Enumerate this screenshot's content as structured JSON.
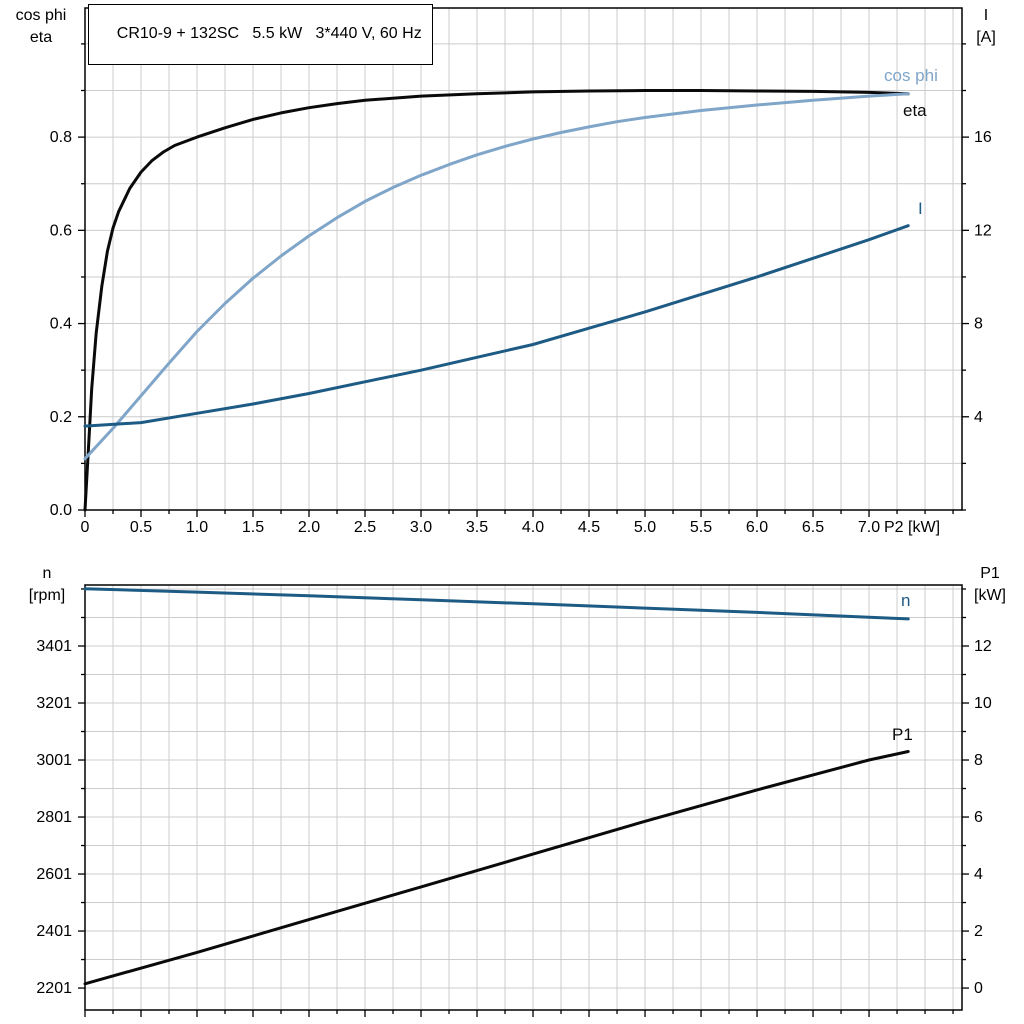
{
  "title_box": {
    "text": "CR10-9 + 132SC   5.5 kW   3*440 V, 60 Hz"
  },
  "colors": {
    "black_curve": "#0a0a0a",
    "cos_phi_curve": "#7fa5c9",
    "blue_curve": "#1d5b85",
    "grid": "#cccccc",
    "axis": "#000000",
    "background": "#ffffff"
  },
  "chart_data": [
    {
      "type": "line",
      "name": "efficiency-current-chart",
      "title": "CR10-9 + 132SC 5.5 kW 3*440 V, 60 Hz",
      "grid": true,
      "x_axis": {
        "label": "P2 [kW]",
        "min": 0,
        "max": 7.83,
        "minor_step": 0.25,
        "major_ticks": [
          0,
          0.5,
          1,
          1.5,
          2,
          2.5,
          3,
          3.5,
          4,
          4.5,
          5,
          5.5,
          6,
          6.5,
          7
        ],
        "tick_labels": [
          "0",
          "0.5",
          "1.0",
          "1.5",
          "2.0",
          "2.5",
          "3.0",
          "3.5",
          "4.0",
          "4.5",
          "5.0",
          "5.5",
          "6.0",
          "6.5",
          "7.0"
        ]
      },
      "left_axis": {
        "title_lines": [
          "cos phi",
          "eta"
        ],
        "min": 0,
        "max": 1.077,
        "minor_step": 0.1,
        "major_ticks": [
          0,
          0.2,
          0.4,
          0.6,
          0.8
        ],
        "tick_labels": [
          "0.0",
          "0.2",
          "0.4",
          "0.6",
          "0.8"
        ]
      },
      "right_axis": {
        "title_lines": [
          "I",
          "[A]"
        ],
        "min": 0,
        "max": 21.54,
        "minor_step": 2,
        "major_ticks": [
          4,
          8,
          12,
          16
        ],
        "tick_labels": [
          "4",
          "8",
          "12",
          "16"
        ]
      },
      "series": [
        {
          "name": "eta",
          "label": "eta",
          "axis": "left",
          "color": "#0a0a0a",
          "points": [
            [
              0,
              0
            ],
            [
              0.03,
              0.13
            ],
            [
              0.06,
              0.26
            ],
            [
              0.1,
              0.38
            ],
            [
              0.15,
              0.48
            ],
            [
              0.2,
              0.555
            ],
            [
              0.25,
              0.605
            ],
            [
              0.3,
              0.64
            ],
            [
              0.4,
              0.69
            ],
            [
              0.5,
              0.725
            ],
            [
              0.6,
              0.75
            ],
            [
              0.7,
              0.768
            ],
            [
              0.8,
              0.782
            ],
            [
              1,
              0.8
            ],
            [
              1.25,
              0.82
            ],
            [
              1.5,
              0.838
            ],
            [
              1.75,
              0.852
            ],
            [
              2,
              0.863
            ],
            [
              2.25,
              0.872
            ],
            [
              2.5,
              0.879
            ],
            [
              3,
              0.888
            ],
            [
              3.5,
              0.893
            ],
            [
              4,
              0.897
            ],
            [
              4.5,
              0.899
            ],
            [
              5,
              0.9
            ],
            [
              5.5,
              0.9
            ],
            [
              6,
              0.899
            ],
            [
              6.5,
              0.898
            ],
            [
              7,
              0.896
            ],
            [
              7.35,
              0.893
            ]
          ]
        },
        {
          "name": "cos phi",
          "label": "cos phi",
          "axis": "left",
          "color": "#7fa5c9",
          "points": [
            [
              0,
              0.11
            ],
            [
              0.25,
              0.175
            ],
            [
              0.5,
              0.245
            ],
            [
              0.75,
              0.315
            ],
            [
              1,
              0.383
            ],
            [
              1.25,
              0.443
            ],
            [
              1.5,
              0.497
            ],
            [
              1.75,
              0.545
            ],
            [
              2,
              0.588
            ],
            [
              2.25,
              0.627
            ],
            [
              2.5,
              0.662
            ],
            [
              2.75,
              0.692
            ],
            [
              3,
              0.718
            ],
            [
              3.25,
              0.741
            ],
            [
              3.5,
              0.762
            ],
            [
              3.75,
              0.78
            ],
            [
              4,
              0.796
            ],
            [
              4.25,
              0.81
            ],
            [
              4.5,
              0.822
            ],
            [
              4.75,
              0.833
            ],
            [
              5,
              0.842
            ],
            [
              5.5,
              0.857
            ],
            [
              6,
              0.869
            ],
            [
              6.5,
              0.879
            ],
            [
              7,
              0.888
            ],
            [
              7.35,
              0.893
            ]
          ]
        },
        {
          "name": "I",
          "label": "I",
          "axis": "right",
          "color": "#1d5b85",
          "points": [
            [
              0,
              3.6
            ],
            [
              0.5,
              3.75
            ],
            [
              1,
              4.15
            ],
            [
              1.5,
              4.55
            ],
            [
              2,
              5
            ],
            [
              2.5,
              5.5
            ],
            [
              3,
              6
            ],
            [
              3.5,
              6.55
            ],
            [
              4,
              7.1
            ],
            [
              4.5,
              7.8
            ],
            [
              5,
              8.5
            ],
            [
              5.5,
              9.25
            ],
            [
              6,
              10
            ],
            [
              6.5,
              10.8
            ],
            [
              7,
              11.6
            ],
            [
              7.35,
              12.2
            ]
          ]
        }
      ]
    },
    {
      "type": "line",
      "name": "speed-power-chart",
      "grid": true,
      "x_axis": {
        "label": "",
        "min": 0,
        "max": 7.83,
        "minor_step": 0.25,
        "major_ticks": [
          0,
          0.5,
          1,
          1.5,
          2,
          2.5,
          3,
          3.5,
          4,
          4.5,
          5,
          5.5,
          6,
          6.5,
          7
        ],
        "tick_labels": []
      },
      "left_axis": {
        "title_lines": [
          "n",
          "[rpm]"
        ],
        "min": 2124,
        "max": 3615,
        "minor_step": 100,
        "major_ticks": [
          2201,
          2401,
          2601,
          2801,
          3001,
          3201,
          3401
        ],
        "tick_labels": [
          "2201",
          "2401",
          "2601",
          "2801",
          "3001",
          "3201",
          "3401"
        ]
      },
      "right_axis": {
        "title_lines": [
          "P1",
          "[kW]"
        ],
        "min": -0.77,
        "max": 14.14,
        "minor_step": 1,
        "major_ticks": [
          0,
          2,
          4,
          6,
          8,
          10,
          12
        ],
        "tick_labels": [
          "0",
          "2",
          "4",
          "6",
          "8",
          "10",
          "12"
        ]
      },
      "series": [
        {
          "name": "n",
          "label": "n",
          "axis": "left",
          "color": "#1d5b85",
          "points": [
            [
              0,
              3602
            ],
            [
              1,
              3590
            ],
            [
              2,
              3577
            ],
            [
              3,
              3563
            ],
            [
              4,
              3549
            ],
            [
              5,
              3534
            ],
            [
              6,
              3519
            ],
            [
              7,
              3502
            ],
            [
              7.35,
              3496
            ]
          ]
        },
        {
          "name": "P1",
          "label": "P1",
          "axis": "right",
          "color": "#0a0a0a",
          "points": [
            [
              0,
              0.15
            ],
            [
              1,
              1.25
            ],
            [
              2,
              2.4
            ],
            [
              3,
              3.55
            ],
            [
              4,
              4.7
            ],
            [
              5,
              5.85
            ],
            [
              6,
              6.95
            ],
            [
              7,
              8
            ],
            [
              7.35,
              8.3
            ]
          ]
        }
      ]
    }
  ]
}
